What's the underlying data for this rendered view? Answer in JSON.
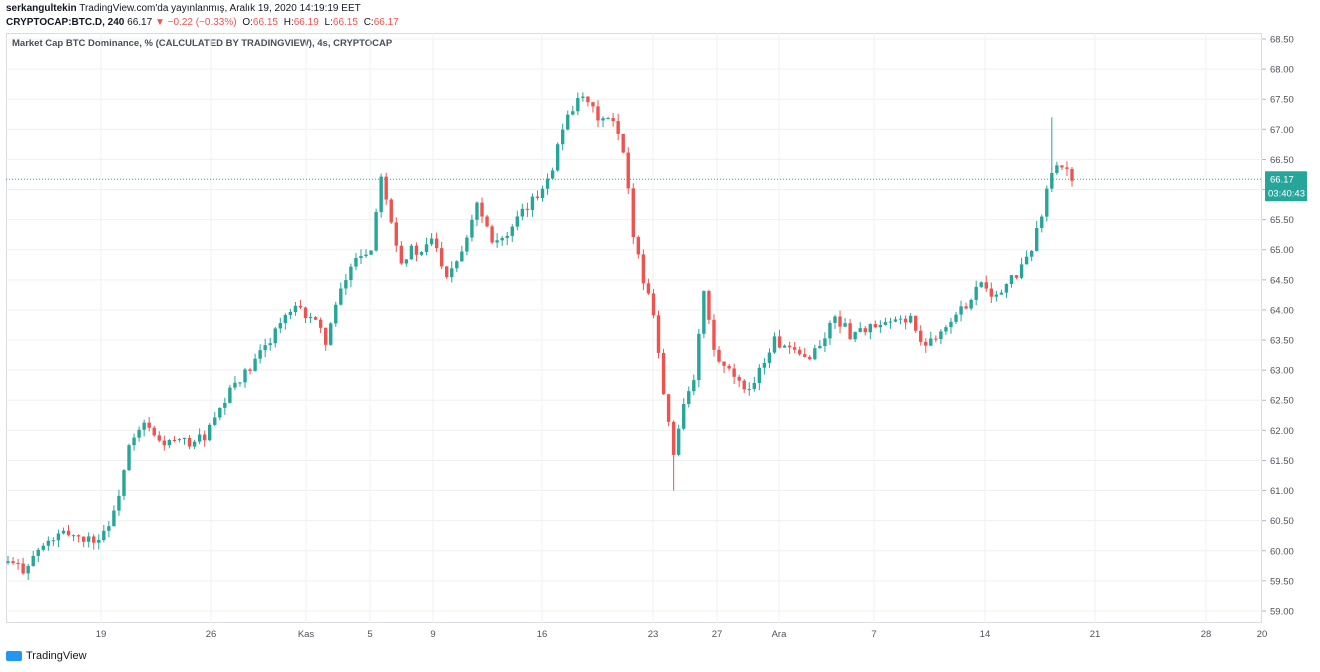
{
  "header": {
    "author": "serkangultekin",
    "published": "TradingView.com'da yayınlanmış, Aralık 19, 2020 14:19:19 EET",
    "symbol": "CRYPTOCAP:BTC.D, 240",
    "last": "66.17",
    "change": "−0.22 (−0.33%)",
    "o_label": "O:",
    "o_value": "66.15",
    "h_label": "H:",
    "h_value": "66.19",
    "l_label": "L:",
    "l_value": "66.15",
    "c_label": "C:",
    "c_value": "66.17"
  },
  "footer": {
    "brand": "TradingView"
  },
  "colors": {
    "up": "#26a69a",
    "down": "#ef5350",
    "grid": "#eef0f3",
    "axis_text": "#50535e",
    "price_line": "#26a69a"
  },
  "chart_data": {
    "type": "candlestick",
    "title": "Market Cap BTC Dominance, % (CALCULATED BY TRADINGVIEW), 4s, CRYPTOCAP",
    "interval": "240",
    "ylim": [
      58.8,
      68.6
    ],
    "y_ticks": [
      "59.00",
      "59.50",
      "60.00",
      "60.50",
      "61.00",
      "61.50",
      "62.00",
      "62.50",
      "63.00",
      "63.50",
      "64.00",
      "64.50",
      "65.00",
      "65.50",
      "66.00",
      "66.50",
      "67.00",
      "67.50",
      "68.00",
      "68.50"
    ],
    "x_ticks": [
      "19",
      "26",
      "Kas",
      "5",
      "9",
      "16",
      "23",
      "27",
      "Ara",
      "7",
      "14",
      "21",
      "28",
      "20"
    ],
    "last_price": "66.17",
    "countdown": "03:40:43",
    "close_path": [
      [
        0,
        59.8
      ],
      [
        3,
        59.7
      ],
      [
        6,
        60.0
      ],
      [
        9,
        60.2
      ],
      [
        12,
        60.3
      ],
      [
        15,
        60.2
      ],
      [
        18,
        60.2
      ],
      [
        21,
        60.6
      ],
      [
        24,
        61.7
      ],
      [
        27,
        62.1
      ],
      [
        30,
        61.8
      ],
      [
        33,
        61.8
      ],
      [
        36,
        61.8
      ],
      [
        39,
        61.9
      ],
      [
        42,
        62.3
      ],
      [
        45,
        62.8
      ],
      [
        48,
        63.0
      ],
      [
        51,
        63.4
      ],
      [
        54,
        63.8
      ],
      [
        57,
        64.0
      ],
      [
        60,
        63.9
      ],
      [
        63,
        63.5
      ],
      [
        66,
        64.3
      ],
      [
        69,
        64.9
      ],
      [
        72,
        65.0
      ],
      [
        74,
        66.3
      ],
      [
        76,
        65.5
      ],
      [
        78,
        64.8
      ],
      [
        80,
        65.0
      ],
      [
        82,
        64.9
      ],
      [
        84,
        65.2
      ],
      [
        87,
        64.6
      ],
      [
        90,
        65.0
      ],
      [
        93,
        65.8
      ],
      [
        96,
        65.2
      ],
      [
        99,
        65.2
      ],
      [
        102,
        65.6
      ],
      [
        105,
        65.9
      ],
      [
        108,
        66.4
      ],
      [
        111,
        67.3
      ],
      [
        114,
        67.5
      ],
      [
        117,
        67.2
      ],
      [
        120,
        67.1
      ],
      [
        122,
        66.6
      ],
      [
        124,
        65.3
      ],
      [
        126,
        64.5
      ],
      [
        128,
        64.0
      ],
      [
        130,
        62.6
      ],
      [
        132,
        61.6
      ],
      [
        134,
        62.5
      ],
      [
        136,
        62.8
      ],
      [
        138,
        64.3
      ],
      [
        140,
        63.3
      ],
      [
        142,
        63.0
      ],
      [
        144,
        62.9
      ],
      [
        146,
        62.6
      ],
      [
        149,
        63.0
      ],
      [
        152,
        63.5
      ],
      [
        155,
        63.3
      ],
      [
        158,
        63.2
      ],
      [
        161,
        63.4
      ],
      [
        164,
        63.9
      ],
      [
        167,
        63.6
      ],
      [
        170,
        63.7
      ],
      [
        173,
        63.7
      ],
      [
        176,
        63.8
      ],
      [
        179,
        63.9
      ],
      [
        181,
        63.4
      ],
      [
        184,
        63.6
      ],
      [
        187,
        63.8
      ],
      [
        190,
        64.1
      ],
      [
        193,
        64.5
      ],
      [
        196,
        64.2
      ],
      [
        199,
        64.5
      ],
      [
        202,
        64.8
      ],
      [
        205,
        65.6
      ],
      [
        207,
        66.3
      ],
      [
        209,
        66.4
      ],
      [
        211,
        66.2
      ]
    ],
    "spikes": [
      {
        "x": 207,
        "high": 67.2,
        "dir": "down"
      },
      {
        "x": 132,
        "low": 61.0,
        "dir": "down"
      }
    ]
  }
}
